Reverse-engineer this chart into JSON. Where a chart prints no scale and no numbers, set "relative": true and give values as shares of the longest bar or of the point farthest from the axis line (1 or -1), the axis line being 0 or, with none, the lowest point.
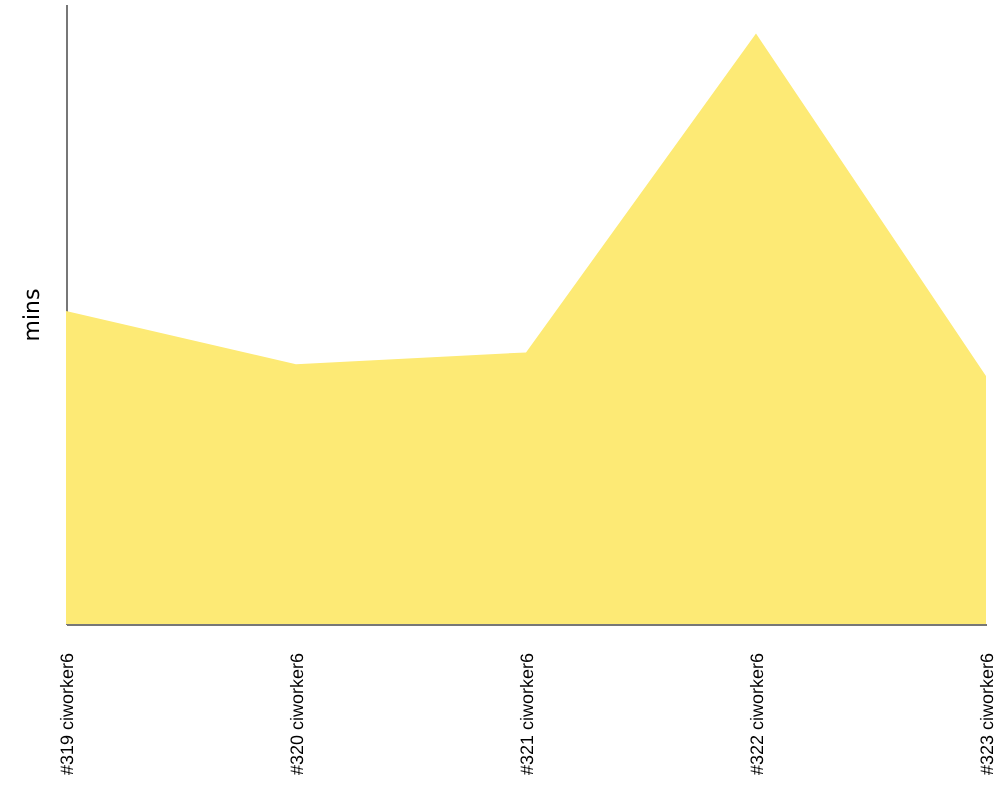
{
  "chart_data": {
    "type": "area",
    "ylabel": "mins",
    "relative": true,
    "categories": [
      "#319 ciworker6",
      "#320 ciworker6",
      "#321 ciworker6",
      "#322 ciworker6",
      "#323 ciworker6"
    ],
    "series": [
      {
        "color": "#fdea75",
        "values": [
          0.53,
          0.44,
          0.46,
          1,
          0.42
        ]
      }
    ]
  }
}
